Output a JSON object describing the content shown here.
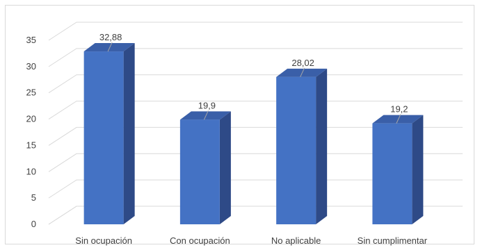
{
  "chart_data": {
    "type": "bar",
    "three_d": true,
    "categories": [
      "Sin ocupación",
      "Con ocupación",
      "No aplicable",
      "Sin cumplimentar"
    ],
    "values": [
      32.88,
      19.9,
      28.02,
      19.2
    ],
    "data_labels": [
      "32,88",
      "19,9",
      "28,02",
      "19,2"
    ],
    "y_ticks": [
      "0",
      "5",
      "10",
      "15",
      "20",
      "25",
      "30",
      "35"
    ],
    "ylim": [
      0,
      35
    ],
    "y_step": 5,
    "grid": true,
    "legend": "none",
    "title": "",
    "xlabel": "",
    "ylabel": "",
    "colors": {
      "bar_front": "#4472c4",
      "bar_side": "#2e4a87",
      "bar_top": "#3a5fa8",
      "grid": "#d9d9d9",
      "text": "#404040"
    }
  }
}
